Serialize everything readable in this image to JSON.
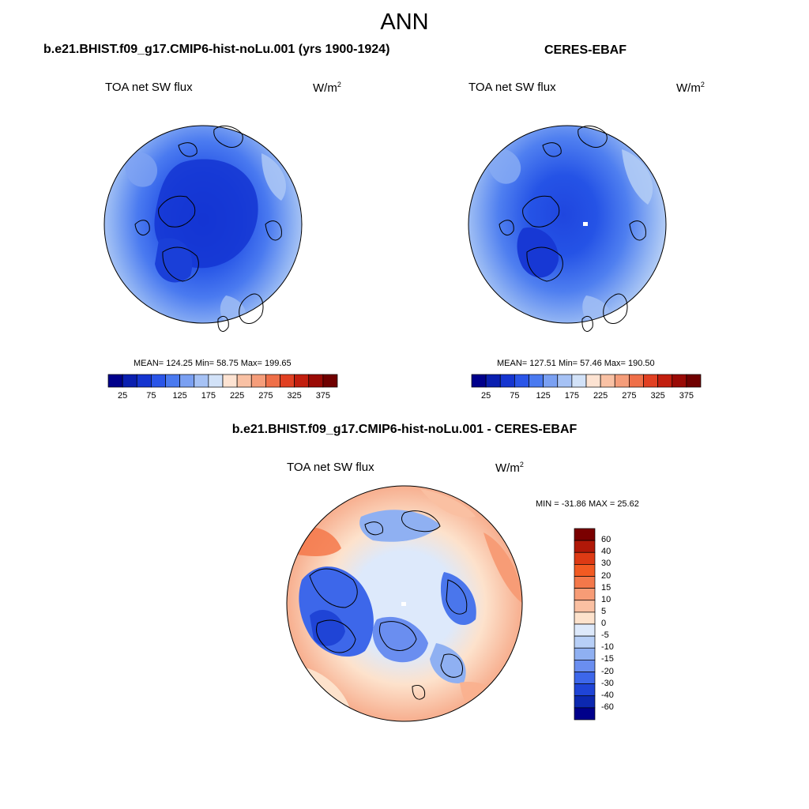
{
  "page_title": "ANN",
  "panels": [
    {
      "title": "b.e21.BHIST.f09_g17.CMIP6-hist-noLu.001 (yrs 1900-1924)",
      "variable": "TOA net SW flux",
      "units": "W/m",
      "units_sup": "2",
      "stats": "MEAN= 124.25  Min=  58.75  Max= 199.65",
      "mean": 124.25,
      "min": 58.75,
      "max": 199.65
    },
    {
      "title": "CERES-EBAF",
      "variable": "TOA net SW flux",
      "units": "W/m",
      "units_sup": "2",
      "stats": "MEAN= 127.51  Min=  57.46  Max= 190.50",
      "mean": 127.51,
      "min": 57.46,
      "max": 190.5
    },
    {
      "title": "b.e21.BHIST.f09_g17.CMIP6-hist-noLu.001 - CERES-EBAF",
      "variable": "TOA net SW flux",
      "units": "W/m",
      "units_sup": "2",
      "stats": "MIN = -31.86 MAX =  25.62",
      "min": -31.86,
      "max": 25.62
    }
  ],
  "colorbar_abs": {
    "labels": [
      "25",
      "75",
      "125",
      "175",
      "225",
      "275",
      "325",
      "375"
    ],
    "colors": [
      "#00008b",
      "#0a1fb0",
      "#1535d0",
      "#2a55e8",
      "#4a7af0",
      "#7aa0f2",
      "#a6c2f5",
      "#d2e2f8",
      "#fde3d2",
      "#f9c1a4",
      "#f59d7a",
      "#ef6f48",
      "#e14022",
      "#c21e0e",
      "#9a0a05",
      "#700000"
    ]
  },
  "colorbar_diff": {
    "labels": [
      "60",
      "40",
      "30",
      "20",
      "15",
      "10",
      "5",
      "0",
      "-5",
      "-10",
      "-15",
      "-20",
      "-30",
      "-40",
      "-60"
    ],
    "colors": [
      "#7a0000",
      "#b01808",
      "#dd3a14",
      "#f25a22",
      "#f4784a",
      "#f79c76",
      "#fac0a2",
      "#fde2cc",
      "#dde9fb",
      "#b7cff7",
      "#8fb0f2",
      "#6a8ef0",
      "#3d67ea",
      "#1f44d6",
      "#0c28b0",
      "#00008b"
    ]
  }
}
